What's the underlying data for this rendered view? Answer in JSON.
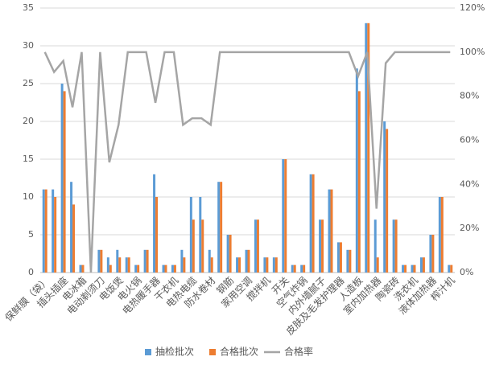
{
  "chart_data": {
    "type": "bar-line",
    "categories": [
      "保鲜膜（袋）",
      null,
      "插头插座",
      null,
      "电冰箱",
      null,
      "电动剃须刀",
      null,
      "电饭煲",
      null,
      "电火锅",
      null,
      "电热暖手器",
      null,
      "干衣机",
      null,
      "电热电缆",
      null,
      "防水卷材",
      null,
      "钢筋",
      null,
      "家用空调",
      null,
      "搅拌机",
      null,
      "开关",
      null,
      "空气炸锅",
      null,
      "内外墙腻子",
      null,
      "皮肤及毛发护理器",
      null,
      "人造板",
      null,
      "室内加热器",
      null,
      "陶瓷砖",
      null,
      "洗衣机",
      null,
      "液体加热器",
      null,
      "榨汁机"
    ],
    "series": [
      {
        "name": "抽检批次",
        "color": "#5b9bd5",
        "values": [
          11,
          11,
          25,
          12,
          1,
          0,
          3,
          2,
          3,
          2,
          1,
          3,
          13,
          1,
          1,
          3,
          10,
          10,
          3,
          12,
          5,
          2,
          3,
          7,
          2,
          2,
          15,
          1,
          1,
          13,
          7,
          11,
          4,
          3,
          27,
          33,
          7,
          20,
          7,
          1,
          1,
          2,
          5,
          10,
          1
        ]
      },
      {
        "name": "合格批次",
        "color": "#ed7d31",
        "values": [
          11,
          10,
          24,
          9,
          1,
          0,
          3,
          1,
          2,
          2,
          1,
          3,
          10,
          1,
          1,
          2,
          7,
          7,
          2,
          12,
          5,
          2,
          3,
          7,
          2,
          2,
          15,
          1,
          1,
          13,
          7,
          11,
          4,
          3,
          24,
          33,
          2,
          19,
          7,
          1,
          1,
          2,
          5,
          10,
          1
        ]
      },
      {
        "name": "合格率",
        "color": "#a5a5a5",
        "axis": "y2",
        "values": [
          100,
          91,
          96,
          75,
          100,
          0,
          100,
          50,
          67,
          100,
          100,
          100,
          77,
          100,
          100,
          67,
          70,
          70,
          67,
          100,
          100,
          100,
          100,
          100,
          100,
          100,
          100,
          100,
          100,
          100,
          100,
          100,
          100,
          100,
          89,
          100,
          29,
          95,
          100,
          100,
          100,
          100,
          100,
          100,
          100
        ]
      }
    ],
    "ylim": [
      0,
      35
    ],
    "yticks": [
      0,
      5,
      10,
      15,
      20,
      25,
      30,
      35
    ],
    "y2lim": [
      0,
      120
    ],
    "y2ticks": [
      {
        "value": 0,
        "label": "0%"
      },
      {
        "value": 20,
        "label": "20%"
      },
      {
        "value": 40,
        "label": "40%"
      },
      {
        "value": 60,
        "label": "60%"
      },
      {
        "value": 80,
        "label": "80%"
      },
      {
        "value": 100,
        "label": "100%"
      },
      {
        "value": 120,
        "label": "120%"
      }
    ],
    "grid": true,
    "legend": "bottom"
  }
}
